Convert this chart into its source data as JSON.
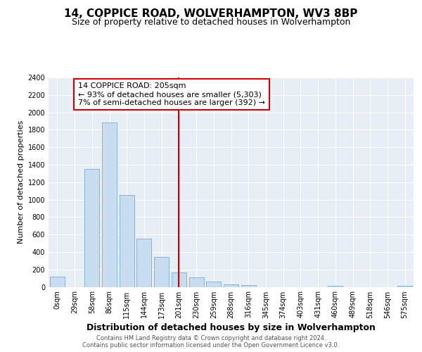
{
  "title": "14, COPPICE ROAD, WOLVERHAMPTON, WV3 8BP",
  "subtitle": "Size of property relative to detached houses in Wolverhampton",
  "xlabel": "Distribution of detached houses by size in Wolverhampton",
  "ylabel": "Number of detached properties",
  "bar_color": "#c8ddf0",
  "bar_edge_color": "#7aadd4",
  "categories": [
    "0sqm",
    "29sqm",
    "58sqm",
    "86sqm",
    "115sqm",
    "144sqm",
    "173sqm",
    "201sqm",
    "230sqm",
    "259sqm",
    "288sqm",
    "316sqm",
    "345sqm",
    "374sqm",
    "403sqm",
    "431sqm",
    "460sqm",
    "489sqm",
    "518sqm",
    "546sqm",
    "575sqm"
  ],
  "values": [
    120,
    0,
    1350,
    1880,
    1050,
    550,
    340,
    165,
    110,
    60,
    30,
    20,
    0,
    0,
    0,
    0,
    15,
    0,
    0,
    0,
    10
  ],
  "ylim": [
    0,
    2400
  ],
  "yticks": [
    0,
    200,
    400,
    600,
    800,
    1000,
    1200,
    1400,
    1600,
    1800,
    2000,
    2200,
    2400
  ],
  "property_line_x": 7,
  "annotation_line1": "14 COPPICE ROAD: 205sqm",
  "annotation_line2": "← 93% of detached houses are smaller (5,303)",
  "annotation_line3": "7% of semi-detached houses are larger (392) →",
  "line_color": "#cc0000",
  "footer_line1": "Contains HM Land Registry data © Crown copyright and database right 2024.",
  "footer_line2": "Contains public sector information licensed under the Open Government Licence v3.0.",
  "bg_color": "#e8eef5",
  "grid_color": "#ffffff",
  "title_fontsize": 11,
  "subtitle_fontsize": 9,
  "ylabel_fontsize": 8,
  "xlabel_fontsize": 9,
  "tick_fontsize": 7,
  "footer_fontsize": 6
}
